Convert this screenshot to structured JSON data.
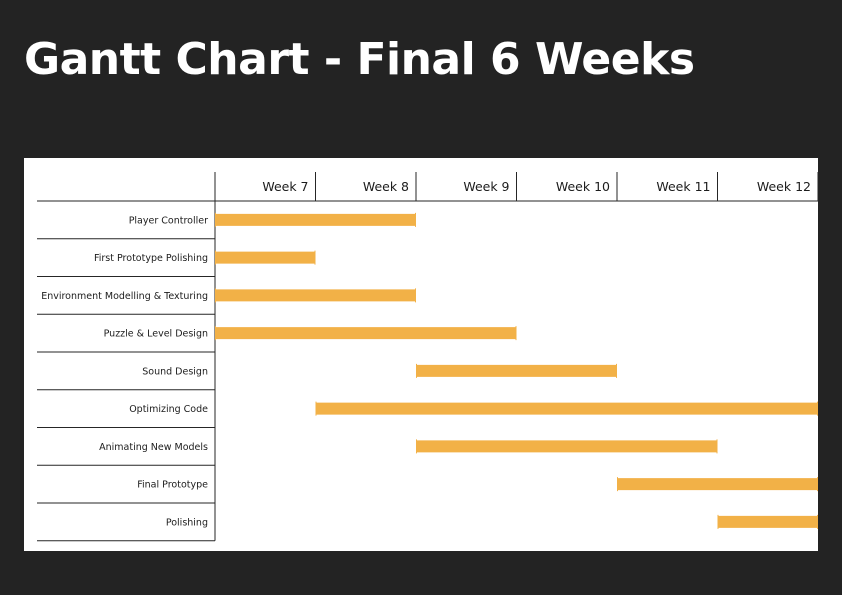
{
  "page": {
    "title": "Gantt Chart - Final 6 Weeks"
  },
  "chart_data": {
    "type": "gantt",
    "weeks": [
      "Week 7",
      "Week 8",
      "Week 9",
      "Week 10",
      "Week 11",
      "Week 12"
    ],
    "first_week_number": 7,
    "bar_color": "#f2b147",
    "tasks": [
      {
        "name": "Player Controller",
        "start_week": 7,
        "end_week": 8
      },
      {
        "name": "First Prototype Polishing",
        "start_week": 7,
        "end_week": 7
      },
      {
        "name": "Environment Modelling & Texturing",
        "start_week": 7,
        "end_week": 8
      },
      {
        "name": "Puzzle & Level Design",
        "start_week": 7,
        "end_week": 9
      },
      {
        "name": "Sound Design",
        "start_week": 9,
        "end_week": 10
      },
      {
        "name": "Optimizing Code",
        "start_week": 8,
        "end_week": 12
      },
      {
        "name": "Animating New Models",
        "start_week": 9,
        "end_week": 11
      },
      {
        "name": "Final Prototype",
        "start_week": 11,
        "end_week": 12
      },
      {
        "name": "Polishing",
        "start_week": 12,
        "end_week": 12
      }
    ]
  }
}
